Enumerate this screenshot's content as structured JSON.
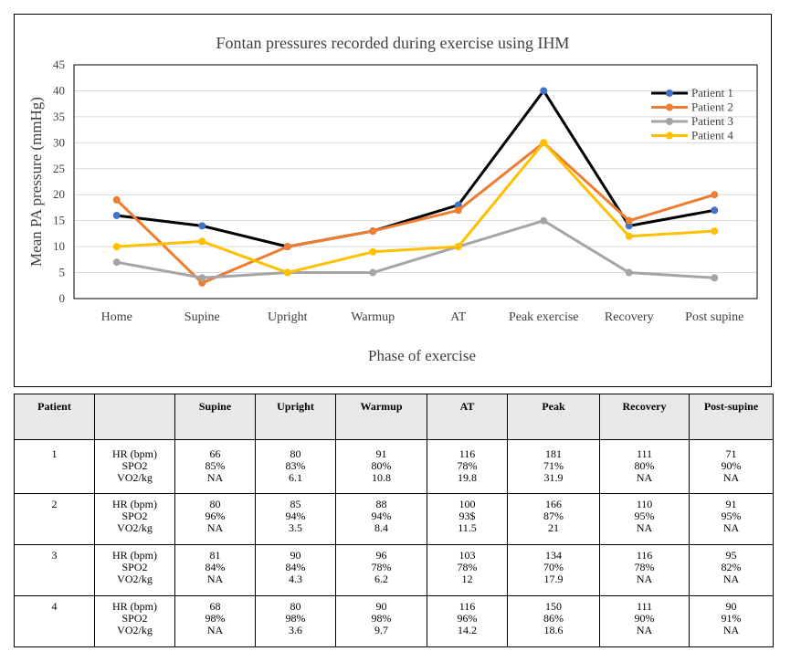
{
  "chart_data": {
    "type": "line",
    "title": "Fontan pressures recorded during exercise using IHM",
    "xlabel": "Phase of exercise",
    "ylabel": "Mean PA pressure (mmHg)",
    "categories": [
      "Home",
      "Supine",
      "Upright",
      "Warmup",
      "AT",
      "Peak exercise",
      "Recovery",
      "Post supine"
    ],
    "ylim": [
      0,
      45
    ],
    "yticks": [
      "0",
      "5",
      "10",
      "15",
      "20",
      "25",
      "30",
      "35",
      "40",
      "45"
    ],
    "grid": true,
    "legend_position": "top-right",
    "series": [
      {
        "name": "Patient 1",
        "color": "#000000",
        "marker_color": "#4472c4",
        "values": [
          16,
          14,
          10,
          13,
          18,
          40,
          14,
          17
        ]
      },
      {
        "name": "Patient 2",
        "color": "#ed7d31",
        "marker_color": "#ed7d31",
        "values": [
          19,
          3,
          10,
          13,
          17,
          30,
          15,
          20
        ]
      },
      {
        "name": "Patient 3",
        "color": "#a5a5a5",
        "marker_color": "#a5a5a5",
        "values": [
          7,
          4,
          5,
          5,
          10,
          15,
          5,
          4
        ]
      },
      {
        "name": "Patient 4",
        "color": "#ffc000",
        "marker_color": "#ffc000",
        "values": [
          10,
          11,
          5,
          9,
          10,
          30,
          12,
          13
        ]
      }
    ]
  },
  "table": {
    "headers": [
      "Patient",
      "",
      "Supine",
      "Upright",
      "Warmup",
      "AT",
      "Peak",
      "Recovery",
      "Post-supine"
    ],
    "metric_labels": [
      "HR (bpm)",
      "SPO2",
      "VO2/kg"
    ],
    "rows": [
      {
        "patient": "1",
        "cells": [
          [
            "66",
            "85%",
            "NA"
          ],
          [
            "80",
            "83%",
            "6.1"
          ],
          [
            "91",
            "80%",
            "10.8"
          ],
          [
            "116",
            "78%",
            "19.8"
          ],
          [
            "181",
            "71%",
            "31.9"
          ],
          [
            "111",
            "80%",
            "NA"
          ],
          [
            "71",
            "90%",
            "NA"
          ]
        ]
      },
      {
        "patient": "2",
        "cells": [
          [
            "80",
            "96%",
            "NA"
          ],
          [
            "85",
            "94%",
            "3.5"
          ],
          [
            "88",
            "94%",
            "8.4"
          ],
          [
            "100",
            "93$",
            "11.5"
          ],
          [
            "166",
            "87%",
            "21"
          ],
          [
            "110",
            "95%",
            "NA"
          ],
          [
            "91",
            "95%",
            "NA"
          ]
        ]
      },
      {
        "patient": "3",
        "cells": [
          [
            "81",
            "84%",
            "NA"
          ],
          [
            "90",
            "84%",
            "4.3"
          ],
          [
            "96",
            "78%",
            "6.2"
          ],
          [
            "103",
            "78%",
            "12"
          ],
          [
            "134",
            "70%",
            "17.9"
          ],
          [
            "116",
            "78%",
            "NA"
          ],
          [
            "95",
            "82%",
            "NA"
          ]
        ]
      },
      {
        "patient": "4",
        "cells": [
          [
            "68",
            "98%",
            "NA"
          ],
          [
            "80",
            "98%",
            "3.6"
          ],
          [
            "90",
            "98%",
            "9.7"
          ],
          [
            "116",
            "96%",
            "14.2"
          ],
          [
            "150",
            "86%",
            "18.6"
          ],
          [
            "111",
            "90%",
            "NA"
          ],
          [
            "90",
            "91%",
            "NA"
          ]
        ]
      }
    ]
  }
}
